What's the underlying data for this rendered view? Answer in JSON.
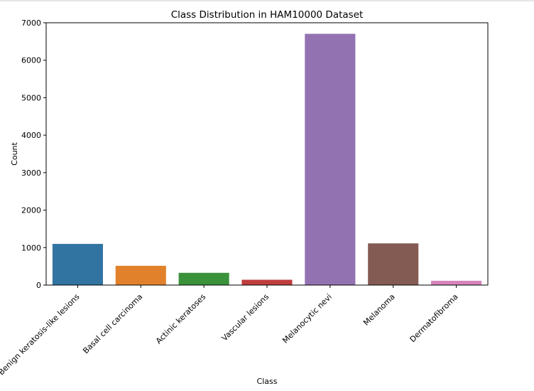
{
  "chart_data": {
    "type": "bar",
    "title": "Class Distribution in HAM10000 Dataset",
    "xlabel": "Class",
    "ylabel": "Count",
    "ylim": [
      0,
      7000
    ],
    "yticks": [
      0,
      1000,
      2000,
      3000,
      4000,
      5000,
      6000,
      7000
    ],
    "grid": false,
    "categories": [
      "Benign keratosis-like lesions",
      "Basal cell carcinoma",
      "Actinic keratoses",
      "Vascular lesions",
      "Melanocytic nevi",
      "Melanoma",
      "Dermatofibroma"
    ],
    "values": [
      1099,
      514,
      327,
      142,
      6705,
      1113,
      115
    ],
    "colors": [
      "#3274a1",
      "#e1812c",
      "#3a923a",
      "#c03d3e",
      "#9372b2",
      "#845b53",
      "#d684bd"
    ]
  }
}
